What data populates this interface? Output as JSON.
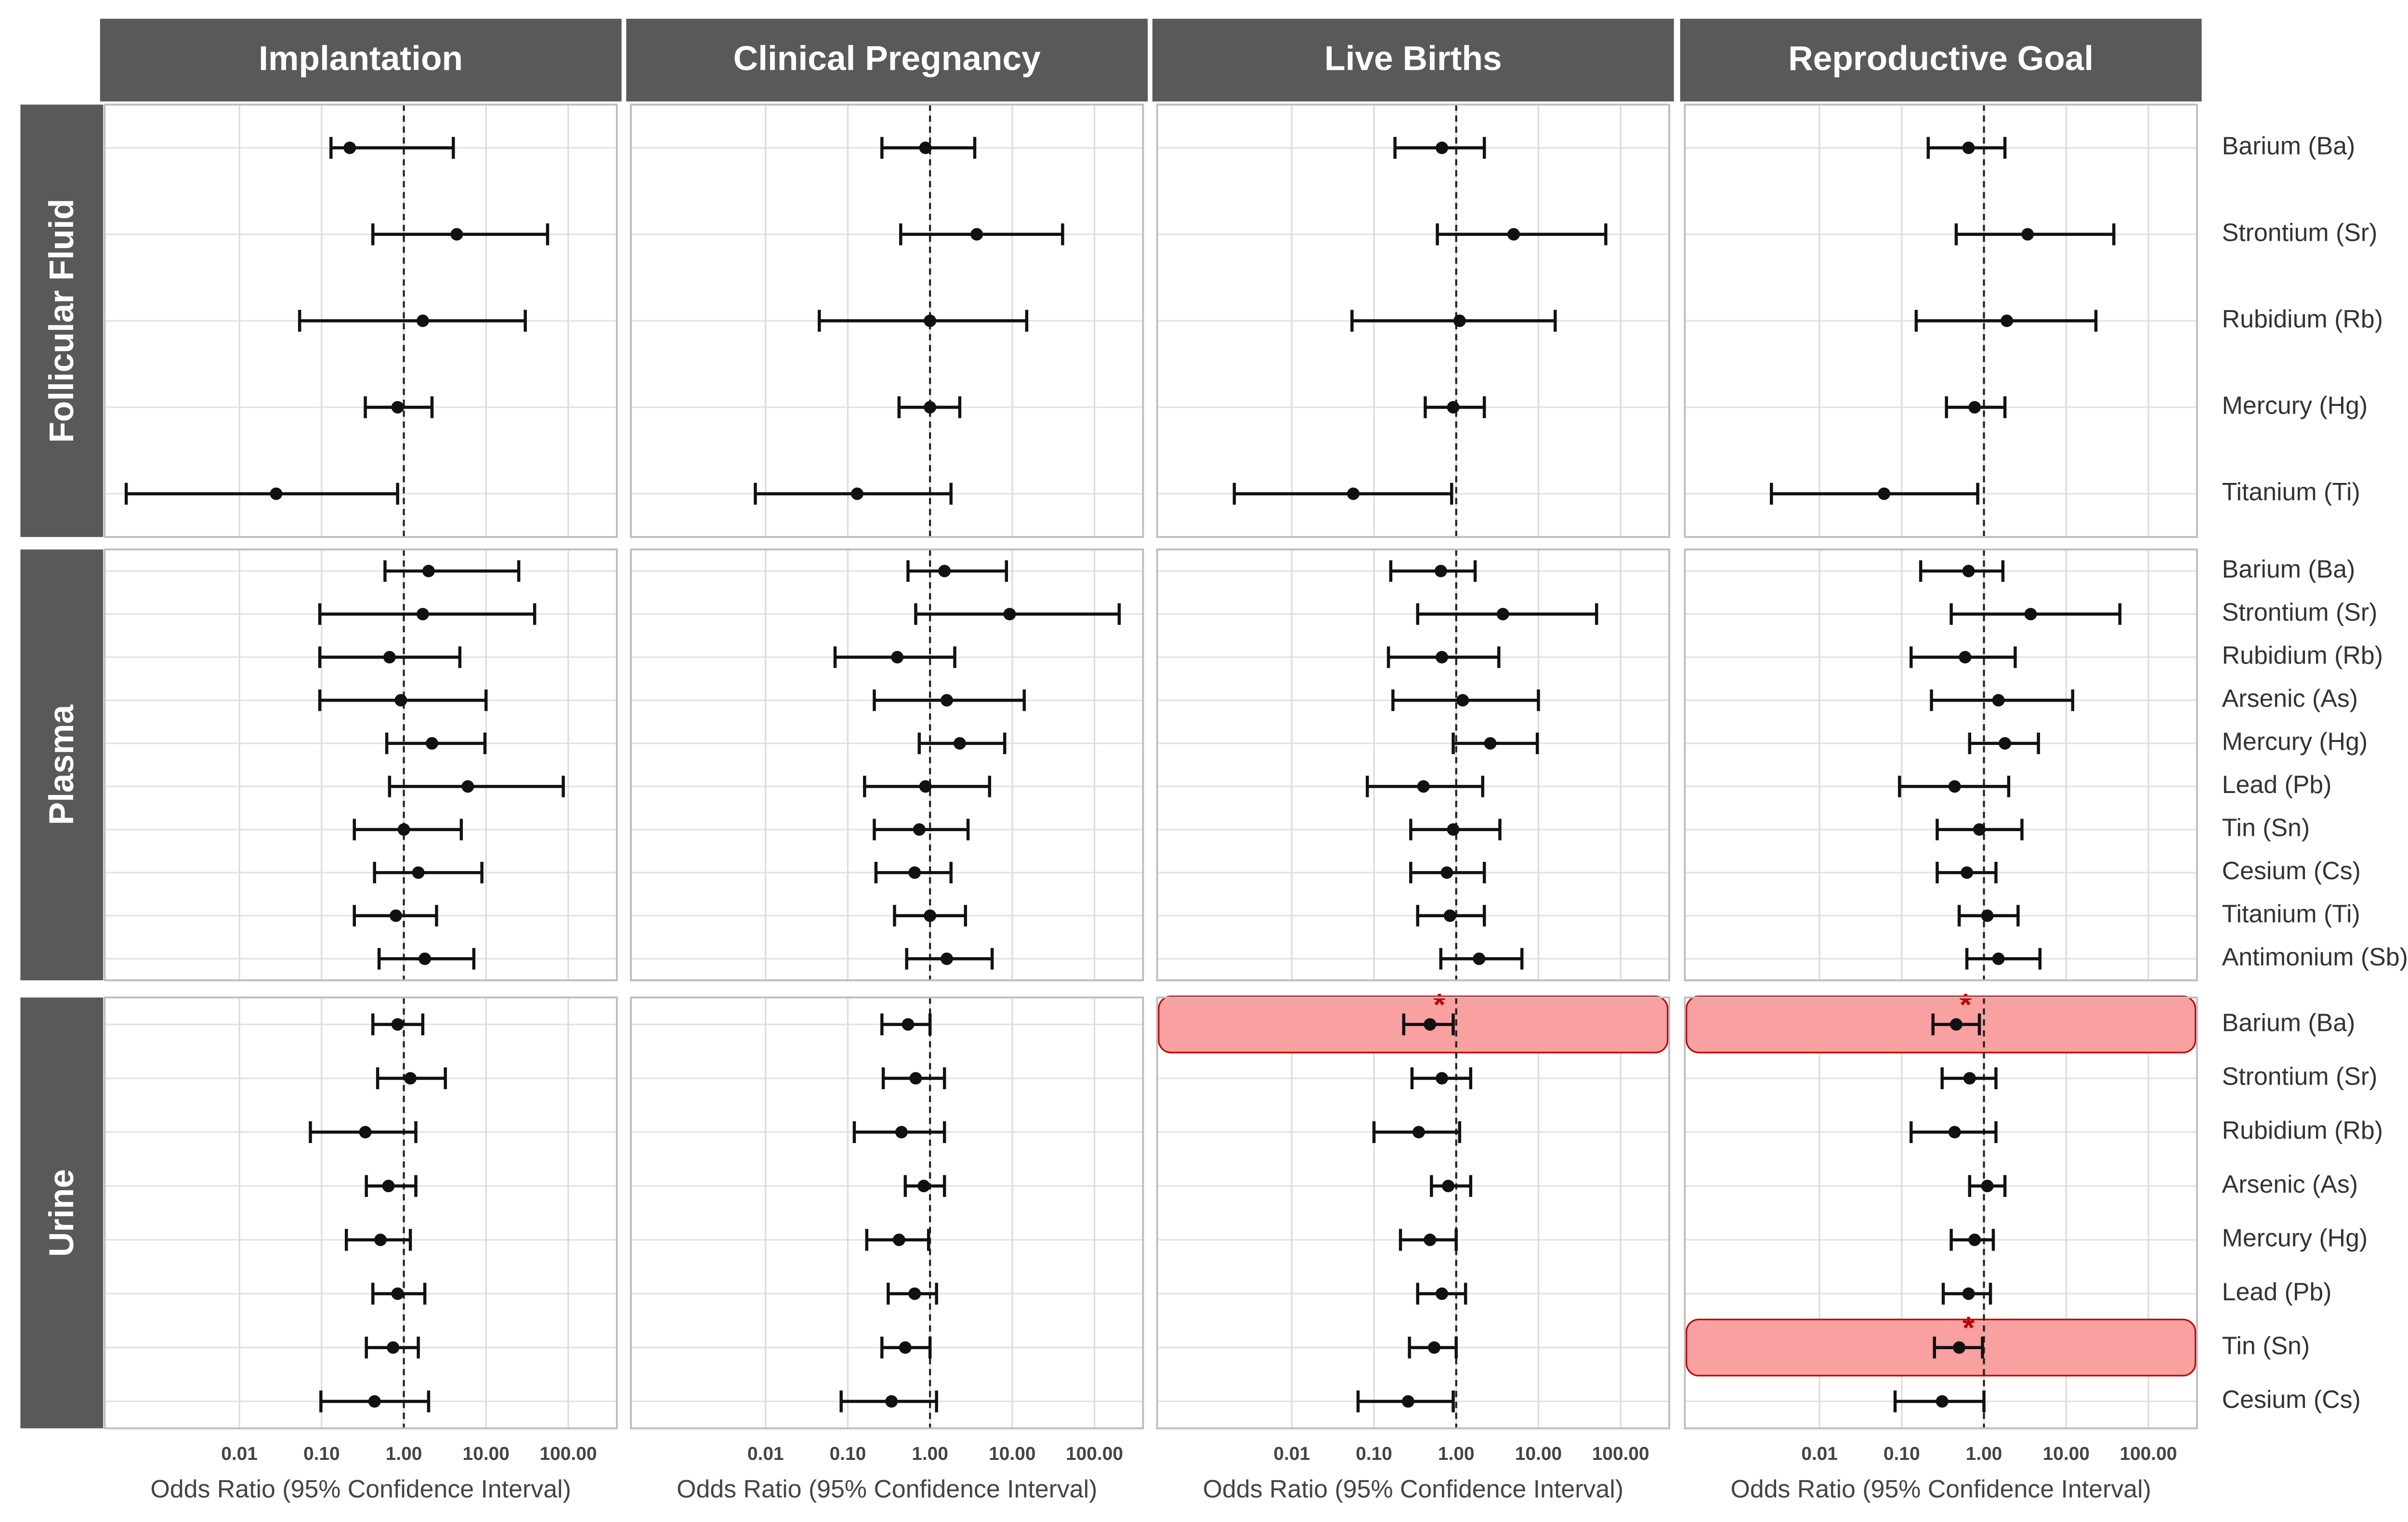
{
  "chart_data": {
    "type": "forest",
    "x_label": "Odds Ratio (95% Confidence Interval)",
    "log_x": true,
    "xlim": [
      0.00023,
      390
    ],
    "xticks": [
      0.01,
      {
        "value": 0.1,
        "label": "0.10"
      },
      {
        "value": 1,
        "label": "1.00"
      },
      {
        "value": 10,
        "label": "10.00"
      },
      {
        "value": 100,
        "label": "100.00"
      }
    ],
    "grid": true,
    "reference_line": 1,
    "color": "#111111",
    "highlight_color": "#f9a0a0",
    "columns": [
      "Implantation",
      "Clinical Pregnancy",
      "Live Births",
      "Reproductive Goal"
    ],
    "rows": [
      {
        "name": "Follicular Fluid",
        "categories": [
          "Barium (Ba)",
          "Strontium (Sr)",
          "Rubidium (Rb)",
          "Mercury (Hg)",
          "Titanium (Ti)"
        ],
        "panels": [
          {
            "values": [
              0.22,
              4.4,
              1.7,
              0.84,
              0.028
            ],
            "lower": [
              0.13,
              0.42,
              0.054,
              0.34,
              0.00042
            ],
            "upper": [
              4.0,
              56,
              30,
              2.2,
              0.84
            ]
          },
          {
            "values": [
              0.88,
              3.7,
              1.0,
              1.0,
              0.13
            ],
            "lower": [
              0.26,
              0.44,
              0.045,
              0.42,
              0.0075
            ],
            "upper": [
              3.5,
              41,
              15,
              2.3,
              1.8
            ]
          },
          {
            "values": [
              0.67,
              5.0,
              1.1,
              0.92,
              0.056
            ],
            "lower": [
              0.18,
              0.59,
              0.054,
              0.42,
              0.002
            ],
            "upper": [
              2.2,
              66,
              16,
              2.2,
              0.88
            ]
          },
          {
            "values": [
              0.65,
              3.4,
              1.9,
              0.77,
              0.061
            ],
            "lower": [
              0.21,
              0.46,
              0.15,
              0.35,
              0.0026
            ],
            "upper": [
              1.8,
              38,
              23,
              1.8,
              0.84
            ]
          }
        ]
      },
      {
        "name": "Plasma",
        "categories": [
          "Barium (Ba)",
          "Strontium (Sr)",
          "Rubidium (Rb)",
          "Arsenic (As)",
          "Mercury (Hg)",
          "Lead (Pb)",
          "Tin (Sn)",
          "Cesium (Cs)",
          "Titanium (Ti)",
          "Antimonium (Sb)"
        ],
        "panels": [
          {
            "values": [
              2.0,
              1.7,
              0.67,
              0.92,
              2.2,
              6.0,
              1.0,
              1.5,
              0.8,
              1.8
            ],
            "lower": [
              0.59,
              0.095,
              0.095,
              0.095,
              0.62,
              0.67,
              0.25,
              0.44,
              0.25,
              0.5
            ],
            "upper": [
              25,
              39,
              4.8,
              10,
              9.7,
              87,
              5.0,
              8.9,
              2.5,
              7.1
            ]
          },
          {
            "values": [
              1.5,
              9.3,
              0.4,
              1.6,
              2.3,
              0.88,
              0.74,
              0.65,
              1.0,
              1.6
            ],
            "lower": [
              0.54,
              0.67,
              0.07,
              0.21,
              0.74,
              0.16,
              0.21,
              0.22,
              0.37,
              0.52
            ],
            "upper": [
              8.5,
              200,
              2.0,
              14,
              8.1,
              5.3,
              2.9,
              1.8,
              2.7,
              5.7
            ]
          },
          {
            "values": [
              0.65,
              3.7,
              0.67,
              1.2,
              2.6,
              0.4,
              0.92,
              0.77,
              0.84,
              1.9
            ],
            "lower": [
              0.16,
              0.34,
              0.15,
              0.17,
              0.92,
              0.083,
              0.28,
              0.28,
              0.34,
              0.65
            ],
            "upper": [
              1.7,
              51,
              3.3,
              10,
              9.7,
              2.1,
              3.4,
              2.2,
              2.2,
              6.3
            ]
          },
          {
            "values": [
              0.65,
              3.7,
              0.59,
              1.5,
              1.8,
              0.44,
              0.88,
              0.62,
              1.1,
              1.5
            ],
            "lower": [
              0.17,
              0.4,
              0.13,
              0.23,
              0.67,
              0.094,
              0.27,
              0.27,
              0.5,
              0.62
            ],
            "upper": [
              1.7,
              45,
              2.4,
              12,
              4.6,
              2.0,
              2.9,
              1.4,
              2.6,
              4.8
            ]
          }
        ]
      },
      {
        "name": "Urine",
        "categories": [
          "Barium (Ba)",
          "Strontium (Sr)",
          "Rubidium (Rb)",
          "Arsenic (As)",
          "Mercury (Hg)",
          "Lead (Pb)",
          "Tin (Sn)",
          "Cesium (Cs)"
        ],
        "panels": [
          {
            "values": [
              0.84,
              1.2,
              0.34,
              0.65,
              0.52,
              0.84,
              0.74,
              0.44
            ],
            "lower": [
              0.42,
              0.48,
              0.073,
              0.35,
              0.2,
              0.42,
              0.35,
              0.098
            ],
            "upper": [
              1.7,
              3.2,
              1.4,
              1.4,
              1.2,
              1.8,
              1.5,
              2.0
            ]
          },
          {
            "values": [
              0.54,
              0.67,
              0.45,
              0.84,
              0.42,
              0.65,
              0.5,
              0.34
            ],
            "lower": [
              0.26,
              0.27,
              0.12,
              0.5,
              0.17,
              0.31,
              0.26,
              0.083
            ],
            "upper": [
              1.0,
              1.5,
              1.5,
              1.5,
              0.96,
              1.2,
              1.0,
              1.2
            ]
          },
          {
            "values": [
              0.48,
              0.67,
              0.35,
              0.8,
              0.48,
              0.67,
              0.54,
              0.26
            ],
            "lower": [
              0.23,
              0.29,
              0.1,
              0.5,
              0.21,
              0.34,
              0.27,
              0.064
            ],
            "upper": [
              0.92,
              1.5,
              1.1,
              1.5,
              1.0,
              1.3,
              1.0,
              0.92
            ],
            "labels": [
              "*",
              null,
              null,
              null,
              null,
              null,
              null,
              null
            ]
          },
          {
            "values": [
              0.46,
              0.67,
              0.44,
              1.1,
              0.77,
              0.65,
              0.5,
              0.31
            ],
            "lower": [
              0.24,
              0.31,
              0.13,
              0.67,
              0.4,
              0.32,
              0.25,
              0.083
            ],
            "upper": [
              0.88,
              1.4,
              1.4,
              1.8,
              1.3,
              1.2,
              0.96,
              1.0
            ],
            "labels": [
              "*",
              null,
              null,
              null,
              null,
              null,
              "*",
              null
            ]
          }
        ]
      }
    ]
  }
}
